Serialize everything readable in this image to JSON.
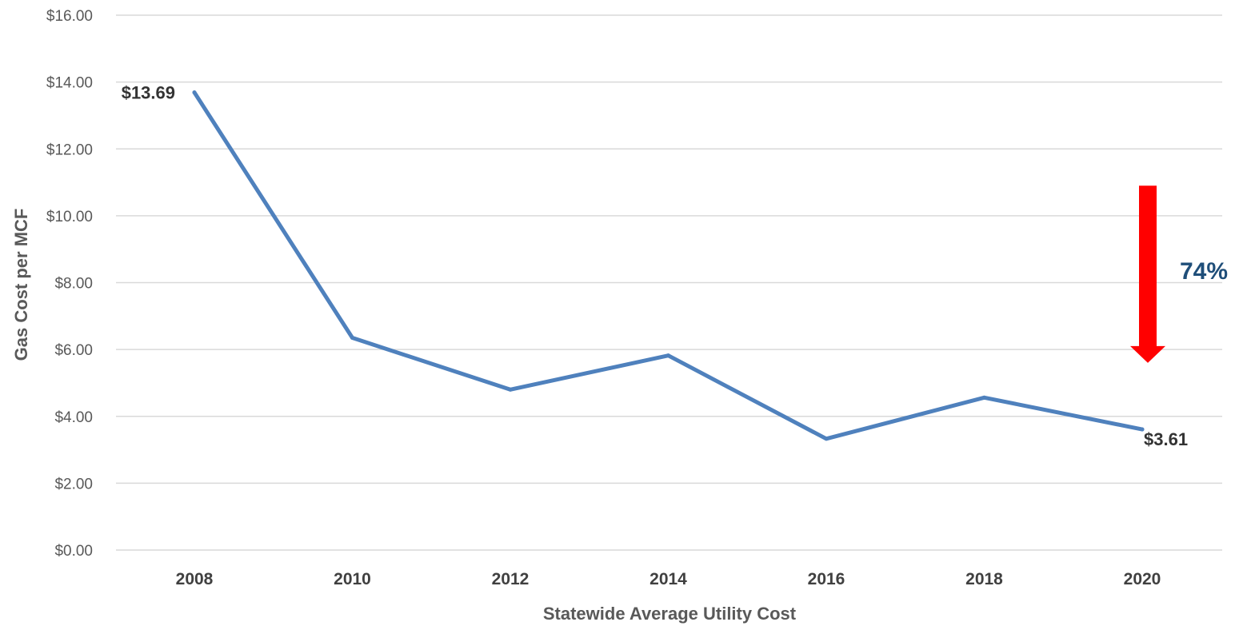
{
  "chart_data": {
    "type": "line",
    "title": "",
    "xlabel": "Statewide Average Utility Cost",
    "ylabel": "Gas Cost per MCF",
    "x": [
      "2008",
      "2010",
      "2012",
      "2014",
      "2016",
      "2018",
      "2020"
    ],
    "y_ticks": [
      "$0.00",
      "$2.00",
      "$4.00",
      "$6.00",
      "$8.00",
      "$10.00",
      "$12.00",
      "$14.00",
      "$16.00"
    ],
    "ylim": [
      0,
      16
    ],
    "grid": true,
    "series": [
      {
        "values": [
          13.69,
          6.35,
          4.8,
          5.82,
          3.33,
          4.56,
          3.61
        ],
        "color": "#4f81bd"
      }
    ],
    "data_labels": [
      {
        "index": 0,
        "text": "$13.69"
      },
      {
        "index": 6,
        "text": "$3.61"
      }
    ],
    "annotation": {
      "text": "74%",
      "text_color": "#1f4e79",
      "arrow_color": "#ff0000",
      "arrow_direction": "down",
      "arrow_from_value": 10.9,
      "arrow_to_value": 5.6
    }
  }
}
